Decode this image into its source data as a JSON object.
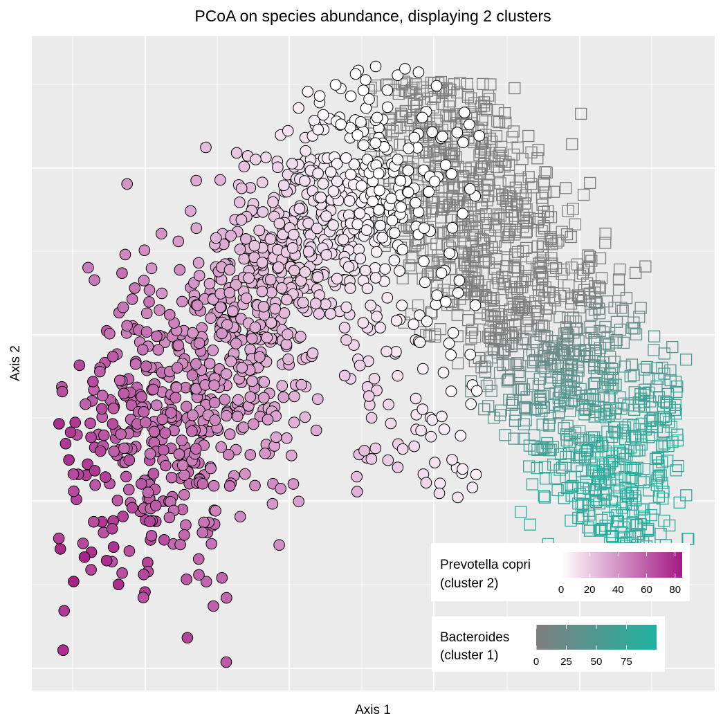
{
  "chart_data": {
    "type": "scatter",
    "title": "PCoA on species abundance, displaying 2 clusters",
    "xlabel": "Axis 1",
    "ylabel": "Axis 2",
    "x_ticks_labeled": false,
    "y_ticks_labeled": false,
    "grid": true,
    "background": "#EBEBEB",
    "series": [
      {
        "name": "cluster 1",
        "marker": "square",
        "fill": "none",
        "color_variable": "Bacteroides",
        "color_scale": {
          "low": "#7F7F7F",
          "high": "#1FB2A0",
          "range": [
            0,
            100
          ]
        },
        "description_points": "dense cloud of open squares on the right half"
      },
      {
        "name": "cluster 2",
        "marker": "circle",
        "stroke": "#000000",
        "color_variable": "Prevotella copri",
        "color_scale": {
          "low": "#FFFFFF",
          "high": "#A31A85",
          "range": [
            0,
            85
          ]
        },
        "description_points": "filled circles spreading from center-top to lower-left"
      }
    ],
    "legends": [
      {
        "title_line1": "Prevotella copri",
        "title_line2": "(cluster 2)",
        "ticks": [
          "0",
          "20",
          "40",
          "60",
          "80"
        ],
        "tick_values": [
          0,
          20,
          40,
          60,
          80
        ],
        "range": [
          0,
          85
        ],
        "colors": [
          "#FFFFFF",
          "#A31A85"
        ],
        "placement": "bottom-right"
      },
      {
        "title_line1": "Bacteroides",
        "title_line2": "(cluster 1)",
        "ticks": [
          "0",
          "25",
          "50",
          "75"
        ],
        "tick_values": [
          0,
          25,
          50,
          75
        ],
        "range": [
          0,
          100
        ],
        "colors": [
          "#7F7F7F",
          "#1FB2A0"
        ],
        "placement": "bottom-right"
      }
    ]
  }
}
